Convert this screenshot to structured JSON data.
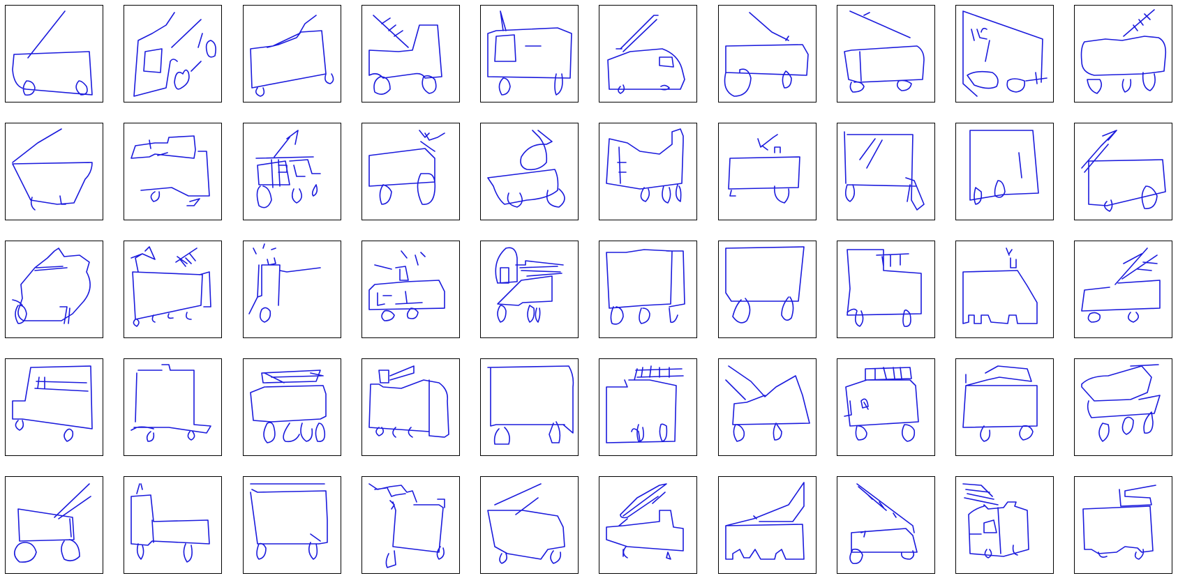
{
  "grid": {
    "rows": 5,
    "cols": 10
  },
  "stroke_color": "#1a1adc",
  "border_color": "#000000",
  "subject": "fire-truck"
}
